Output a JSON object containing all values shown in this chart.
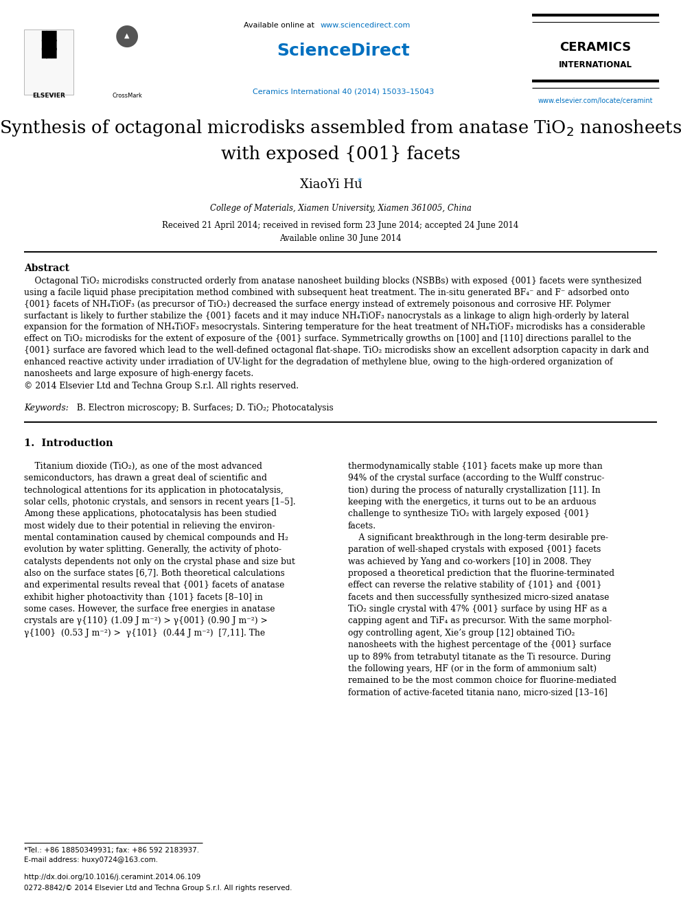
{
  "fig_width": 9.92,
  "fig_height": 13.23,
  "bg_color": "#ffffff",
  "url_color": "#0070c0",
  "text_color": "#000000",
  "header_available": "Available online at ",
  "header_url": "www.sciencedirect.com",
  "header_sd": "ScienceDirect",
  "header_ceramics1": "CERAMICS",
  "header_ceramics2": "INTERNATIONAL",
  "header_ceramics_url": "www.elsevier.com/locate/ceramint",
  "header_journal_ref": "Ceramics International 40 (2014) 15033–15043",
  "title_line1": "Synthesis of octagonal microdisks assembled from anatase TiO$_2$ nanosheets",
  "title_line2": "with exposed {001} facets",
  "author": "XiaoYi Hu",
  "affiliation": "College of Materials, Xiamen University, Xiamen 361005, China",
  "received": "Received 21 April 2014; received in revised form 23 June 2014; accepted 24 June 2014",
  "available_online": "Available online 30 June 2014",
  "abstract_title": "Abstract",
  "copyright": "© 2014 Elsevier Ltd and Techna Group S.r.l. All rights reserved.",
  "keywords_label": "Keywords:",
  "keywords": " B. Electron microscopy; B. Surfaces; D. TiO₂; Photocatalysis",
  "intro_title": "1.  Introduction",
  "footnote1": "*Tel.: +86 18850349931; fax: +86 592 2183937.",
  "footnote2": "E-mail address: huxy0724@163.com.",
  "doi": "http://dx.doi.org/10.1016/j.ceramint.2014.06.109",
  "issn": "0272-8842/© 2014 Elsevier Ltd and Techna Group S.r.l. All rights reserved.",
  "abstract_lines": [
    "    Octagonal TiO₂ microdisks constructed orderly from anatase nanosheet building blocks (NSBBs) with exposed {001} facets were synthesized",
    "using a facile liquid phase precipitation method combined with subsequent heat treatment. The in-situ generated BF₄⁻ and F⁻ adsorbed onto",
    "{001} facets of NH₄TiOF₃ (as precursor of TiO₂) decreased the surface energy instead of extremely poisonous and corrosive HF. Polymer",
    "surfactant is likely to further stabilize the {001} facets and it may induce NH₄TiOF₃ nanocrystals as a linkage to align high-orderly by lateral",
    "expansion for the formation of NH₄TiOF₃ mesocrystals. Sintering temperature for the heat treatment of NH₄TiOF₃ microdisks has a considerable",
    "effect on TiO₂ microdisks for the extent of exposure of the {001} surface. Symmetrically growths on [100] and [110] directions parallel to the",
    "{001} surface are favored which lead to the well-defined octagonal flat-shape. TiO₂ microdisks show an excellent adsorption capacity in dark and",
    "enhanced reactive activity under irradiation of UV-light for the degradation of methylene blue, owing to the high-ordered organization of",
    "nanosheets and large exposure of high-energy facets."
  ],
  "col1_lines": [
    "    Titanium dioxide (TiO₂), as one of the most advanced",
    "semiconductors, has drawn a great deal of scientific and",
    "technological attentions for its application in photocatalysis,",
    "solar cells, photonic crystals, and sensors in recent years [1–5].",
    "Among these applications, photocatalysis has been studied",
    "most widely due to their potential in relieving the environ-",
    "mental contamination caused by chemical compounds and H₂",
    "evolution by water splitting. Generally, the activity of photo-",
    "catalysts dependents not only on the crystal phase and size but",
    "also on the surface states [6,7]. Both theoretical calculations",
    "and experimental results reveal that {001} facets of anatase",
    "exhibit higher photoactivity than {101} facets [8–10] in",
    "some cases. However, the surface free energies in anatase",
    "crystals are γ{110} (1.09 J m⁻²) > γ{001} (0.90 J m⁻²) >",
    "γ{100}  (0.53 J m⁻²) >  γ{101}  (0.44 J m⁻²)  [7,11]. The"
  ],
  "col2_lines": [
    "thermodynamically stable {101} facets make up more than",
    "94% of the crystal surface (according to the Wulff construc-",
    "tion) during the process of naturally crystallization [11]. In",
    "keeping with the energetics, it turns out to be an arduous",
    "challenge to synthesize TiO₂ with largely exposed {001}",
    "facets.",
    "    A significant breakthrough in the long-term desirable pre-",
    "paration of well-shaped crystals with exposed {001} facets",
    "was achieved by Yang and co-workers [10] in 2008. They",
    "proposed a theoretical prediction that the fluorine-terminated",
    "effect can reverse the relative stability of {101} and {001}",
    "facets and then successfully synthesized micro-sized anatase",
    "TiO₂ single crystal with 47% {001} surface by using HF as a",
    "capping agent and TiF₄ as precursor. With the same morphol-",
    "ogy controlling agent, Xie’s group [12] obtained TiO₂",
    "nanosheets with the highest percentage of the {001} surface",
    "up to 89% from tetrabutyl titanate as the Ti resource. During",
    "the following years, HF (or in the form of ammonium salt)",
    "remained to be the most common choice for fluorine-mediated",
    "formation of active-faceted titania nano, micro-sized [13–16]"
  ]
}
